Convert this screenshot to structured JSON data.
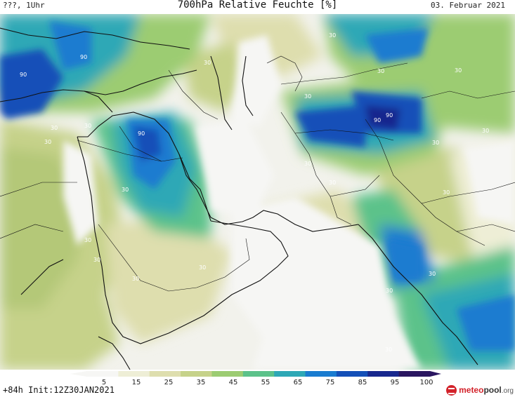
{
  "header": {
    "left": "???, 1Uhr",
    "title": "700hPa Relative Feuchte [%]",
    "date": "03. Februar 2021"
  },
  "footer": {
    "forecast": "+84h Init:12Z30JAN2021"
  },
  "logo": {
    "meteo": "meteo",
    "pool": "pool",
    "org": ".org"
  },
  "colorbar": {
    "labels": [
      "5",
      "15",
      "25",
      "35",
      "45",
      "55",
      "65",
      "75",
      "85",
      "95",
      "100"
    ],
    "colors": [
      "#f6f6f4",
      "#eeeed6",
      "#dedeae",
      "#c6d28a",
      "#9ccc72",
      "#5cc28a",
      "#2ea8b6",
      "#1a7cd0",
      "#1450b8",
      "#18288e",
      "#2a1660"
    ]
  },
  "contour_labels": [
    "30",
    "30",
    "90",
    "30",
    "90",
    "30",
    "30",
    "30",
    "90",
    "30",
    "30",
    "30",
    "30",
    "30",
    "30",
    "30",
    "90",
    "90",
    "30",
    "30",
    "30",
    "30",
    "30",
    "30",
    "30",
    "30"
  ]
}
